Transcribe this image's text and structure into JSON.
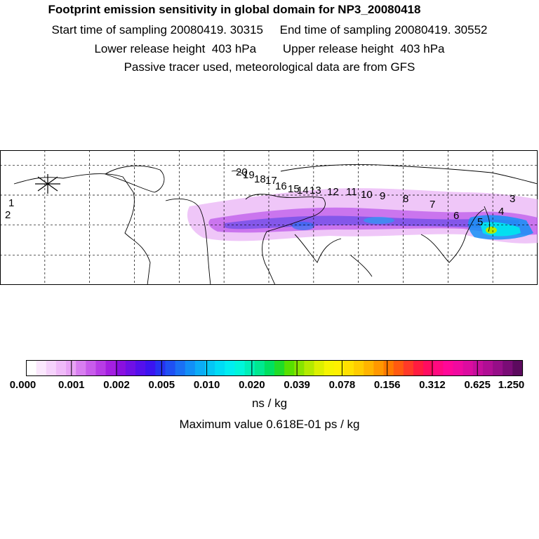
{
  "title": "Footprint emission sensitivity in global domain for NP3_20080418",
  "sampling": {
    "start_label": "Start time of sampling",
    "start_value": "20080419. 30315",
    "end_label": "End time of sampling",
    "end_value": "20080419. 30552"
  },
  "release": {
    "lower_label": "Lower release height",
    "lower_value": "403 hPa",
    "upper_label": "Upper release height",
    "upper_value": "403 hPa"
  },
  "note": "Passive tracer used, meteorological data are from GFS",
  "units": "ns / kg",
  "max_label": "Maximum value  0.618E-01 ps / kg",
  "chart_data": {
    "type": "heatmap",
    "title": "Footprint emission sensitivity in global domain for NP3_20080418",
    "map": {
      "projection": "equirectangular",
      "lon_range": [
        -180,
        180
      ],
      "lat_range": [
        0,
        90
      ],
      "grid_lon_step": 30,
      "grid_lat_step": 20,
      "release_marker_lon": -150,
      "release_marker_lat": 70
    },
    "colorbar": {
      "label": "ns / kg",
      "tick_labels": [
        "0.000",
        "0.001",
        "0.002",
        "0.005",
        "0.010",
        "0.020",
        "0.039",
        "0.078",
        "0.156",
        "0.312",
        "0.625",
        "1.250"
      ],
      "tick_values": [
        0,
        0.001,
        0.002,
        0.005,
        0.01,
        0.02,
        0.039,
        0.078,
        0.156,
        0.312,
        0.625,
        1.25
      ],
      "colors": [
        "#ffffff",
        "#fbe8fd",
        "#f5d2fb",
        "#efbaf8",
        "#e8a3f5",
        "#d87ef0",
        "#c85ceb",
        "#b73ce6",
        "#a41fe1",
        "#8a10e0",
        "#6f10e6",
        "#5410ec",
        "#3b14f0",
        "#2632f2",
        "#1f50f3",
        "#1a70f4",
        "#128ff6",
        "#0cacf6",
        "#05c6f5",
        "#00dcf5",
        "#00eef0",
        "#00f6da",
        "#00f0b8",
        "#00e890",
        "#00e060",
        "#20dc28",
        "#58e000",
        "#88e400",
        "#b4ea00",
        "#dcf000",
        "#f6f400",
        "#fff000",
        "#ffe000",
        "#ffcc00",
        "#ffb400",
        "#ff9800",
        "#ff7a00",
        "#ff5a10",
        "#ff3a28",
        "#ff1c40",
        "#ff0c60",
        "#ff0a80",
        "#ff0898",
        "#f00aa0",
        "#dc0ca0",
        "#c60e9c",
        "#b00e94",
        "#960e88",
        "#7a0c76",
        "#5c0a5e"
      ]
    },
    "trajectory_labels": [
      "1",
      "2",
      "3",
      "4",
      "5",
      "6",
      "7",
      "8",
      "9",
      "10",
      "11",
      "12",
      "13",
      "14",
      "15",
      "16",
      "17",
      "18",
      "19",
      "20"
    ],
    "max_value": 0.0618,
    "max_value_unit": "ps / kg"
  }
}
